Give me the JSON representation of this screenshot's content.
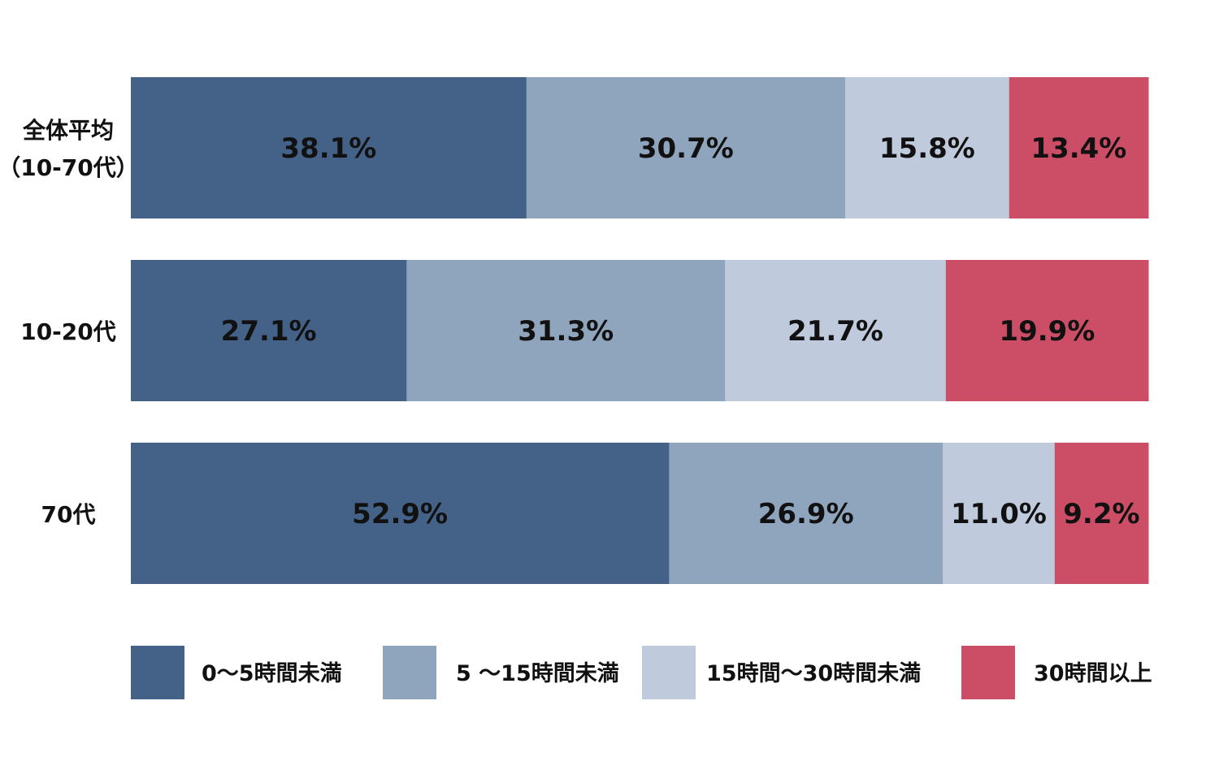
{
  "chart_data": {
    "type": "bar",
    "orientation": "horizontal",
    "stacked": true,
    "percent": true,
    "categories": [
      "全体平均\n（10-70代）",
      "10-20代",
      "70代"
    ],
    "series": [
      {
        "name": "0～5時間未満",
        "color": "#446188",
        "values": [
          38.1,
          27.1,
          52.9
        ],
        "labels": [
          "38.1%",
          "27.1%",
          "52.9%"
        ]
      },
      {
        "name": "5 ～15時間未満",
        "color": "#8fa5bd",
        "values": [
          30.7,
          31.3,
          26.9
        ],
        "labels": [
          "30.7%",
          "31.3%",
          "26.9%"
        ]
      },
      {
        "name": "15時間～30時間未満",
        "color": "#c0cadd",
        "values": [
          15.8,
          21.7,
          11.0
        ],
        "labels": [
          "15.8%",
          "21.7%",
          "11.0%"
        ]
      },
      {
        "name": "30時間以上",
        "color": "#cc4e66",
        "values": [
          13.4,
          19.9,
          9.2
        ],
        "labels": [
          "13.4%",
          "19.9%",
          "9.2%"
        ]
      }
    ],
    "xlim": [
      0,
      100
    ],
    "grid": false,
    "legend": "bottom"
  }
}
